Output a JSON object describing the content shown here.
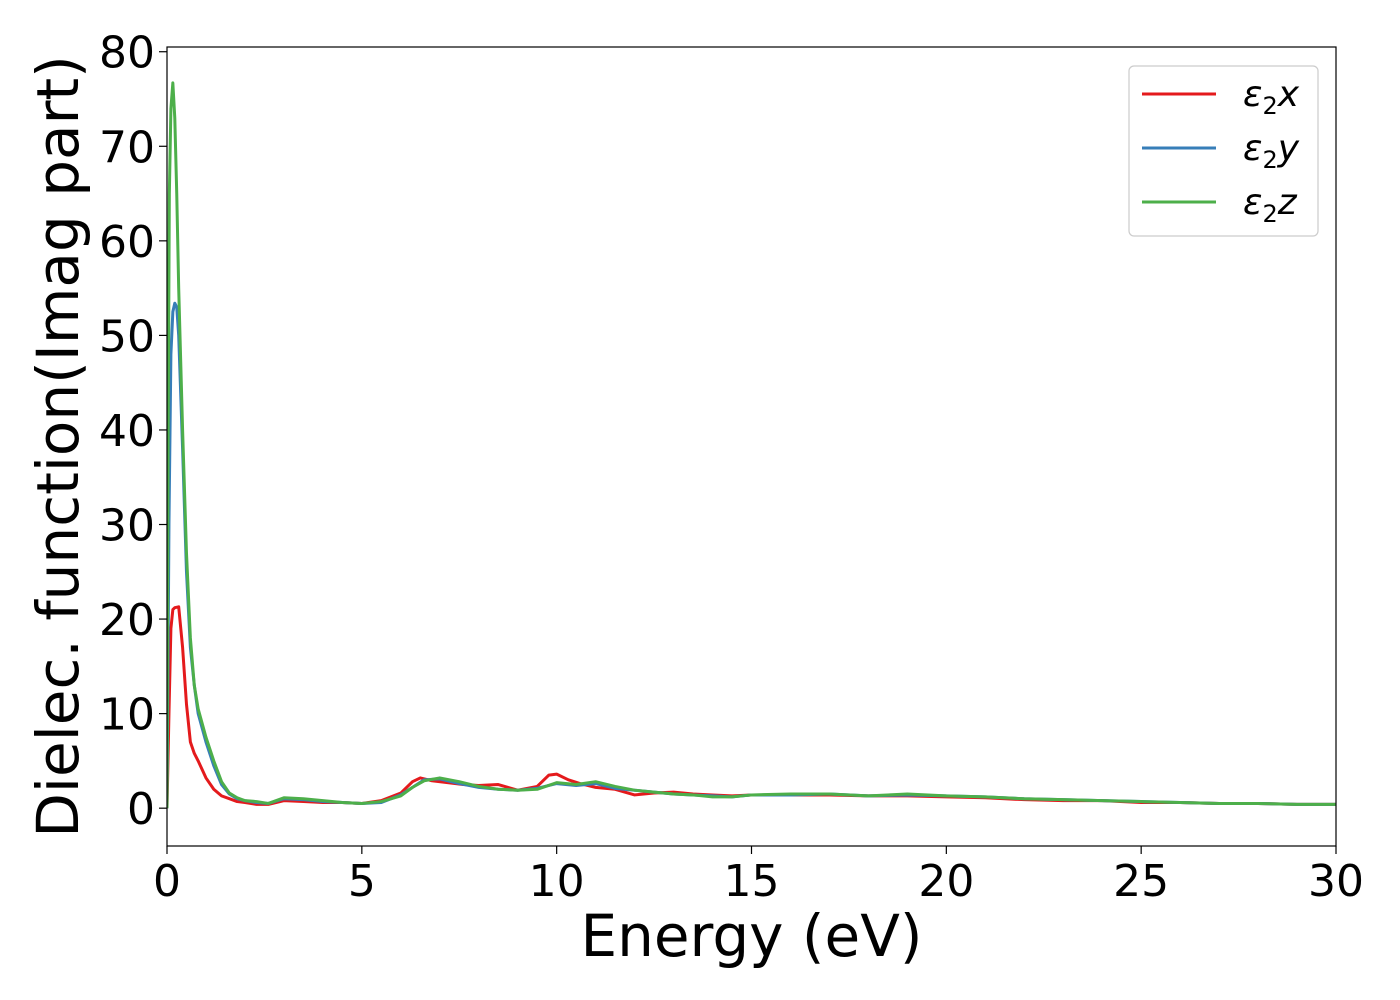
{
  "chart_data": {
    "type": "line",
    "title": "",
    "xlabel": "Energy (eV)",
    "ylabel": "Dielec. function(Imag part)",
    "xlim": [
      0,
      30
    ],
    "ylim": [
      -4,
      80.5
    ],
    "xticks": [
      0,
      5,
      10,
      15,
      20,
      25,
      30
    ],
    "yticks": [
      0,
      10,
      20,
      30,
      40,
      50,
      60,
      70,
      80
    ],
    "grid": false,
    "legend_position": "top-right",
    "series": [
      {
        "name": "ε2x",
        "legend_main": "ε",
        "legend_sub": "2",
        "legend_tail": "x",
        "color": "#e41a1c",
        "x": [
          0,
          0.05,
          0.1,
          0.15,
          0.2,
          0.3,
          0.4,
          0.5,
          0.6,
          0.7,
          0.8,
          1.0,
          1.2,
          1.4,
          1.6,
          1.8,
          2.0,
          2.3,
          2.6,
          3.0,
          3.5,
          4.0,
          4.5,
          5.0,
          5.5,
          6.0,
          6.3,
          6.5,
          6.8,
          7.2,
          7.6,
          8.0,
          8.5,
          9.0,
          9.5,
          9.8,
          10.0,
          10.3,
          10.6,
          11.0,
          11.5,
          12.0,
          12.5,
          13.0,
          13.5,
          14.0,
          14.5,
          15.0,
          16.0,
          17.0,
          18.0,
          19.0,
          20.0,
          21.0,
          22.0,
          23.0,
          24.0,
          25.0,
          26.0,
          27.0,
          28.0,
          29.0,
          30.0
        ],
        "y": [
          0,
          10,
          19,
          21,
          21.2,
          21.3,
          17,
          11,
          7,
          5.8,
          5,
          3.2,
          2.0,
          1.3,
          1.0,
          0.7,
          0.6,
          0.4,
          0.4,
          0.8,
          0.7,
          0.6,
          0.6,
          0.5,
          0.8,
          1.6,
          2.8,
          3.2,
          2.9,
          2.7,
          2.5,
          2.4,
          2.5,
          1.9,
          2.3,
          3.5,
          3.6,
          3.0,
          2.6,
          2.2,
          2.0,
          1.4,
          1.6,
          1.7,
          1.5,
          1.4,
          1.3,
          1.4,
          1.4,
          1.4,
          1.3,
          1.3,
          1.2,
          1.1,
          0.9,
          0.8,
          0.8,
          0.6,
          0.6,
          0.5,
          0.5,
          0.4,
          0.4
        ]
      },
      {
        "name": "ε2y",
        "legend_main": "ε",
        "legend_sub": "2",
        "legend_tail": "y",
        "color": "#377eb8",
        "x": [
          0,
          0.05,
          0.1,
          0.15,
          0.2,
          0.25,
          0.3,
          0.4,
          0.5,
          0.6,
          0.7,
          0.8,
          1.0,
          1.2,
          1.4,
          1.6,
          1.8,
          2.0,
          2.3,
          2.6,
          3.0,
          3.5,
          4.0,
          4.5,
          5.0,
          5.5,
          6.0,
          6.3,
          6.6,
          7.0,
          7.5,
          8.0,
          8.5,
          9.0,
          9.5,
          10.0,
          10.5,
          11.0,
          11.5,
          12.0,
          12.5,
          13.0,
          13.5,
          14.0,
          14.5,
          15.0,
          16.0,
          17.0,
          18.0,
          19.0,
          20.0,
          21.0,
          22.0,
          23.0,
          24.0,
          25.0,
          26.0,
          27.0,
          28.0,
          29.0,
          30.0
        ],
        "y": [
          0,
          30,
          48,
          52.5,
          53.4,
          53,
          50,
          38,
          25,
          17,
          13,
          10,
          7,
          4.5,
          2.5,
          1.5,
          1.0,
          0.8,
          0.6,
          0.5,
          1.0,
          0.9,
          0.7,
          0.6,
          0.5,
          0.6,
          1.4,
          2.2,
          3.0,
          3.1,
          2.6,
          2.2,
          2.0,
          1.9,
          2.1,
          2.6,
          2.4,
          2.6,
          2.1,
          1.9,
          1.7,
          1.5,
          1.4,
          1.3,
          1.2,
          1.4,
          1.4,
          1.5,
          1.3,
          1.4,
          1.3,
          1.2,
          1.0,
          0.9,
          0.8,
          0.7,
          0.6,
          0.5,
          0.5,
          0.4,
          0.4
        ]
      },
      {
        "name": "ε2z",
        "legend_main": "ε",
        "legend_sub": "2",
        "legend_tail": "z",
        "color": "#4daf4a",
        "x": [
          0,
          0.03,
          0.06,
          0.1,
          0.15,
          0.2,
          0.25,
          0.3,
          0.4,
          0.5,
          0.6,
          0.7,
          0.8,
          1.0,
          1.2,
          1.4,
          1.6,
          1.8,
          2.0,
          2.3,
          2.6,
          3.0,
          3.5,
          4.0,
          4.5,
          5.0,
          5.5,
          6.0,
          6.3,
          6.6,
          7.0,
          7.5,
          8.0,
          8.5,
          9.0,
          9.5,
          10.0,
          10.5,
          11.0,
          11.5,
          12.0,
          12.5,
          13.0,
          13.5,
          14.0,
          14.5,
          15.0,
          16.0,
          17.0,
          18.0,
          19.0,
          20.0,
          21.0,
          22.0,
          23.0,
          24.0,
          25.0,
          26.0,
          27.0,
          28.0,
          29.0,
          30.0
        ],
        "y": [
          0,
          40,
          65,
          74,
          76.7,
          73,
          65,
          55,
          40,
          27,
          18,
          13,
          10.5,
          7.5,
          5.0,
          2.8,
          1.6,
          1.1,
          0.8,
          0.7,
          0.5,
          1.1,
          1.0,
          0.8,
          0.6,
          0.5,
          0.7,
          1.3,
          2.2,
          2.9,
          3.2,
          2.8,
          2.3,
          2.0,
          1.9,
          2.0,
          2.7,
          2.5,
          2.8,
          2.3,
          1.9,
          1.7,
          1.5,
          1.4,
          1.2,
          1.2,
          1.4,
          1.5,
          1.5,
          1.3,
          1.5,
          1.3,
          1.2,
          1.0,
          0.9,
          0.8,
          0.7,
          0.6,
          0.5,
          0.5,
          0.4,
          0.4
        ]
      }
    ]
  }
}
